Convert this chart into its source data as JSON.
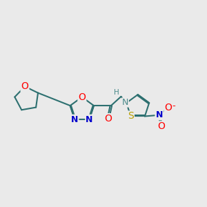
{
  "bg_color": "#eaeaea",
  "bond_color": "#2d7070",
  "bond_width": 1.5,
  "atom_colors": {
    "O": "#ff0000",
    "N": "#0000cc",
    "S": "#b8a000",
    "NH": "#4a8a8a",
    "H": "#4a8a8a",
    "plus": "#0000cc",
    "minus": "#ff0000"
  },
  "font_size": 8.5,
  "figsize": [
    3.0,
    3.0
  ],
  "dpi": 100
}
